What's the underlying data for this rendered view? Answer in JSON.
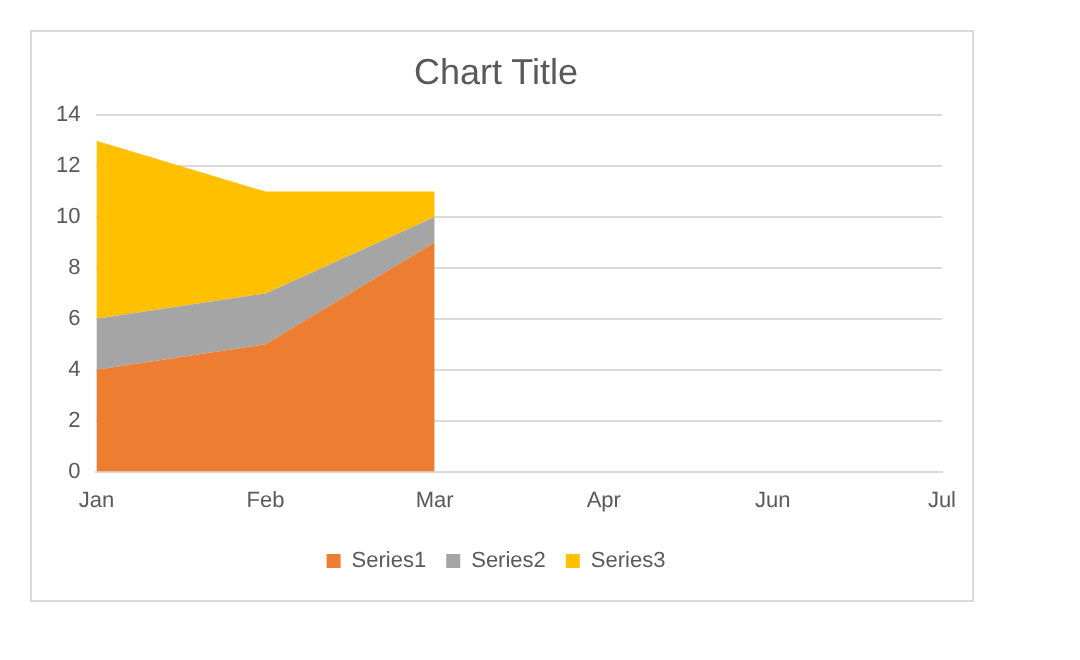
{
  "chart_data": {
    "type": "area",
    "title": "Chart Title",
    "stacked": true,
    "categories": [
      "Jan",
      "Feb",
      "Mar",
      "Apr",
      "Jun",
      "Jul"
    ],
    "series": [
      {
        "name": "Series1",
        "color": "#ed7d31",
        "values": [
          4,
          5,
          9,
          null,
          null,
          null
        ]
      },
      {
        "name": "Series2",
        "color": "#a5a5a5",
        "values": [
          2,
          2,
          1,
          null,
          null,
          null
        ]
      },
      {
        "name": "Series3",
        "color": "#ffc000",
        "values": [
          7,
          4,
          1,
          null,
          null,
          null
        ]
      }
    ],
    "ylim": [
      0,
      14
    ],
    "yticks": [
      0,
      2,
      4,
      6,
      8,
      10,
      12,
      14
    ],
    "grid": "y",
    "legend": "bottom"
  }
}
